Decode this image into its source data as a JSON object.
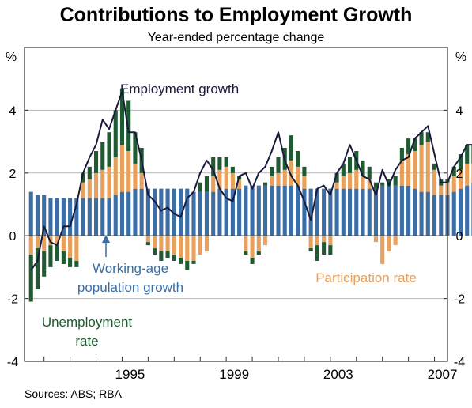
{
  "chart_data": {
    "type": "bar",
    "title": "Contributions to Employment Growth",
    "subtitle": "Year-ended percentage change",
    "y_unit_left": "%",
    "y_unit_right": "%",
    "ylim": [
      -4,
      6
    ],
    "y_ticks": [
      -4,
      -2,
      0,
      2,
      4
    ],
    "x_ticks": [
      {
        "label": "1995",
        "value": 1995.0
      },
      {
        "label": "1999",
        "value": 1999.0
      },
      {
        "label": "2003",
        "value": 2003.0
      },
      {
        "label": "2007",
        "value": 2007.0
      }
    ],
    "x_range": [
      1991.25,
      2007.5
    ],
    "first_quarter": 1991.5,
    "quarter_step": 0.25,
    "grid": true,
    "stacked": true,
    "colors": {
      "working_age": "#3a6ea5",
      "participation": "#e8a05a",
      "unemployment": "#1f5a32",
      "employment_line": "#1a1a3c",
      "grid": "#b5b5b5",
      "frame": "#333333",
      "annotation_arrow": "#3a6ea5"
    },
    "series": [
      {
        "name": "Working-age population growth",
        "values": [
          1.4,
          1.3,
          1.3,
          1.2,
          1.2,
          1.2,
          1.2,
          1.2,
          1.2,
          1.2,
          1.2,
          1.2,
          1.2,
          1.3,
          1.4,
          1.4,
          1.5,
          1.5,
          1.5,
          1.5,
          1.5,
          1.5,
          1.5,
          1.5,
          1.5,
          1.4,
          1.4,
          1.4,
          1.4,
          1.5,
          1.5,
          1.5,
          1.5,
          1.6,
          1.6,
          1.6,
          1.6,
          1.6,
          1.6,
          1.6,
          1.6,
          1.6,
          1.5,
          1.5,
          1.5,
          1.5,
          1.5,
          1.5,
          1.5,
          1.5,
          1.5,
          1.5,
          1.5,
          1.5,
          1.6,
          1.6,
          1.6,
          1.6,
          1.6,
          1.5,
          1.4,
          1.4,
          1.3,
          1.3,
          1.3,
          1.4,
          1.5,
          1.6,
          1.7
        ]
      },
      {
        "name": "Participation rate",
        "values": [
          -0.6,
          -0.4,
          -0.5,
          -0.3,
          -0.3,
          -0.5,
          -0.7,
          -0.8,
          0.5,
          0.6,
          0.8,
          0.9,
          1.0,
          1.2,
          1.5,
          1.3,
          0.8,
          0.5,
          -0.2,
          -0.4,
          -0.5,
          -0.5,
          -0.6,
          -0.7,
          -0.8,
          -0.8,
          -0.6,
          -0.5,
          0.5,
          0.6,
          0.7,
          0.5,
          0.3,
          -0.5,
          -0.7,
          -0.5,
          -0.3,
          0.3,
          0.4,
          0.5,
          0.8,
          0.6,
          0.4,
          -0.4,
          -0.3,
          -0.2,
          -0.3,
          0.2,
          0.4,
          0.5,
          0.6,
          0.4,
          0.3,
          -0.2,
          -0.9,
          -0.5,
          -0.3,
          0.8,
          1.0,
          1.2,
          1.5,
          1.6,
          0.8,
          0.3,
          0.4,
          0.5,
          0.6,
          0.7,
          0.6
        ]
      },
      {
        "name": "Unemployment rate",
        "values": [
          -1.5,
          -1.3,
          -0.8,
          -0.7,
          -0.5,
          -0.4,
          -0.3,
          -0.2,
          0.3,
          0.4,
          0.7,
          0.9,
          1.1,
          1.5,
          1.8,
          1.6,
          1.0,
          0.8,
          -0.1,
          -0.2,
          -0.3,
          -0.2,
          -0.2,
          -0.2,
          -0.3,
          -0.1,
          0.3,
          0.5,
          0.6,
          0.4,
          0.3,
          0.2,
          0.1,
          -0.1,
          -0.2,
          -0.1,
          0.1,
          0.3,
          0.5,
          0.7,
          0.8,
          0.5,
          0.3,
          -0.1,
          -0.5,
          -0.4,
          -0.3,
          0.3,
          0.4,
          0.5,
          0.6,
          0.5,
          0.4,
          0.2,
          0.1,
          0.2,
          0.3,
          0.4,
          0.5,
          0.4,
          0.4,
          0.3,
          0.2,
          0.2,
          0.1,
          0.3,
          0.5,
          0.6,
          0.6
        ]
      },
      {
        "name": "Employment growth",
        "type": "line",
        "values": [
          -1.1,
          -0.8,
          0.3,
          -0.2,
          -0.3,
          0.3,
          0.3,
          1.0,
          2.0,
          2.5,
          2.9,
          3.7,
          3.4,
          4.0,
          4.6,
          3.3,
          3.3,
          2.4,
          1.3,
          1.1,
          0.8,
          0.9,
          0.7,
          0.6,
          1.2,
          1.4,
          2.0,
          2.4,
          2.1,
          1.5,
          1.2,
          1.1,
          1.9,
          2.0,
          1.5,
          2.0,
          2.2,
          2.7,
          3.3,
          2.4,
          1.9,
          1.6,
          1.1,
          0.5,
          1.5,
          1.6,
          1.3,
          2.0,
          2.3,
          2.9,
          2.4,
          1.9,
          1.8,
          1.3,
          2.1,
          1.6,
          2.1,
          2.4,
          2.5,
          3.1,
          3.3,
          3.5,
          2.6,
          1.7,
          1.7,
          2.2,
          2.5,
          2.9,
          2.9
        ]
      }
    ]
  },
  "annotations": {
    "employment_growth": "Employment growth",
    "working_age_line1": "Working-age",
    "working_age_line2": "population growth",
    "participation": "Participation rate",
    "unemployment_line1": "Unemployment",
    "unemployment_line2": "rate"
  },
  "source": "Sources: ABS; RBA"
}
